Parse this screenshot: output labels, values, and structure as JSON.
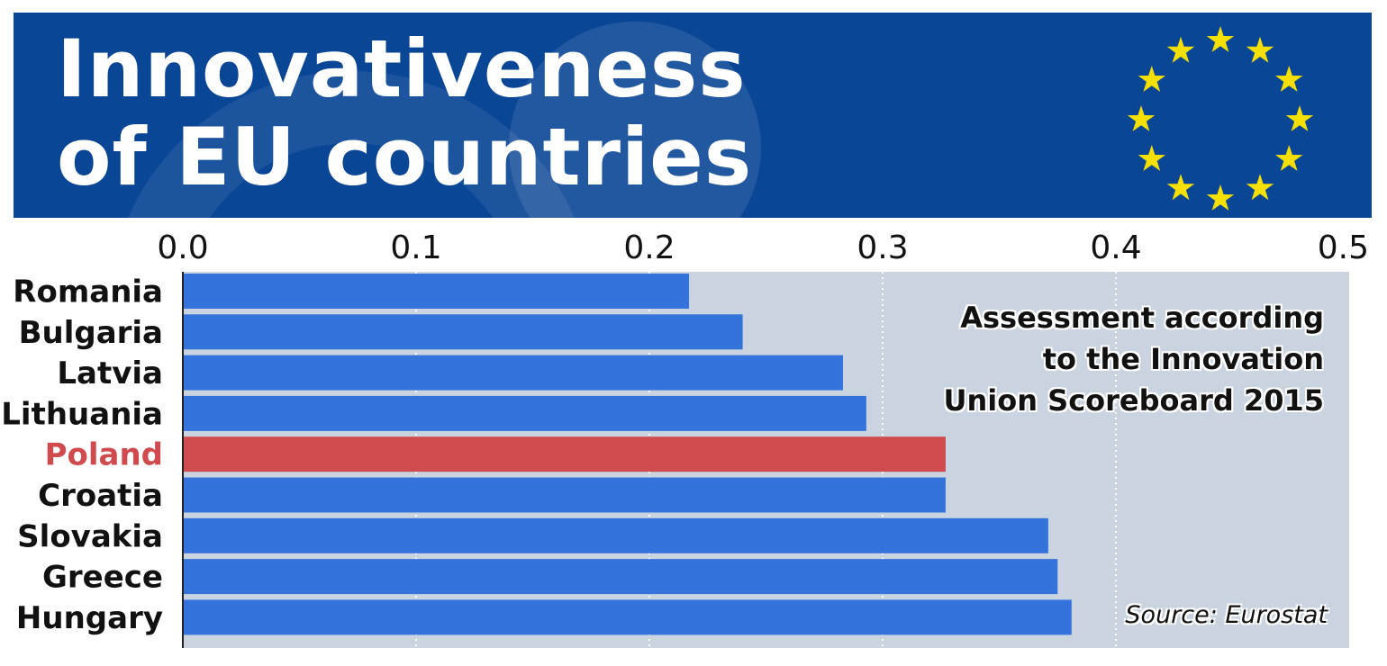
{
  "header": {
    "title_line1": "Innovativeness",
    "title_line2": "of EU countries",
    "background_color": "#0a4696",
    "flag_star_color": "#f5e000"
  },
  "note": {
    "line1": "Assessment according",
    "line2": "to the Innovation",
    "line3": "Union Scoreboard 2015"
  },
  "source": "Source: Eurostat",
  "chart_data": {
    "type": "bar",
    "orientation": "horizontal",
    "title": "Innovativeness of EU countries",
    "xlabel": "",
    "ylabel": "",
    "xlim": [
      0,
      0.5
    ],
    "x_ticks": [
      "0.0",
      "0.1",
      "0.2",
      "0.3",
      "0.4",
      "0.5"
    ],
    "x_tick_values": [
      0,
      0.1,
      0.2,
      0.3,
      0.4,
      0.5
    ],
    "grid": "vertical dotted",
    "categories": [
      "Romania",
      "Bulgaria",
      "Latvia",
      "Lithuania",
      "Poland",
      "Croatia",
      "Slovakia",
      "Greece",
      "Hungary"
    ],
    "values": [
      0.217,
      0.24,
      0.283,
      0.293,
      0.327,
      0.327,
      0.371,
      0.375,
      0.381
    ],
    "highlight": "Poland",
    "colors": {
      "bar": "#3373db",
      "highlight_bar": "#cf4b4e",
      "highlight_label": "#cf4b4e",
      "label": "#111111",
      "plot_background": "#cad4e0"
    }
  }
}
